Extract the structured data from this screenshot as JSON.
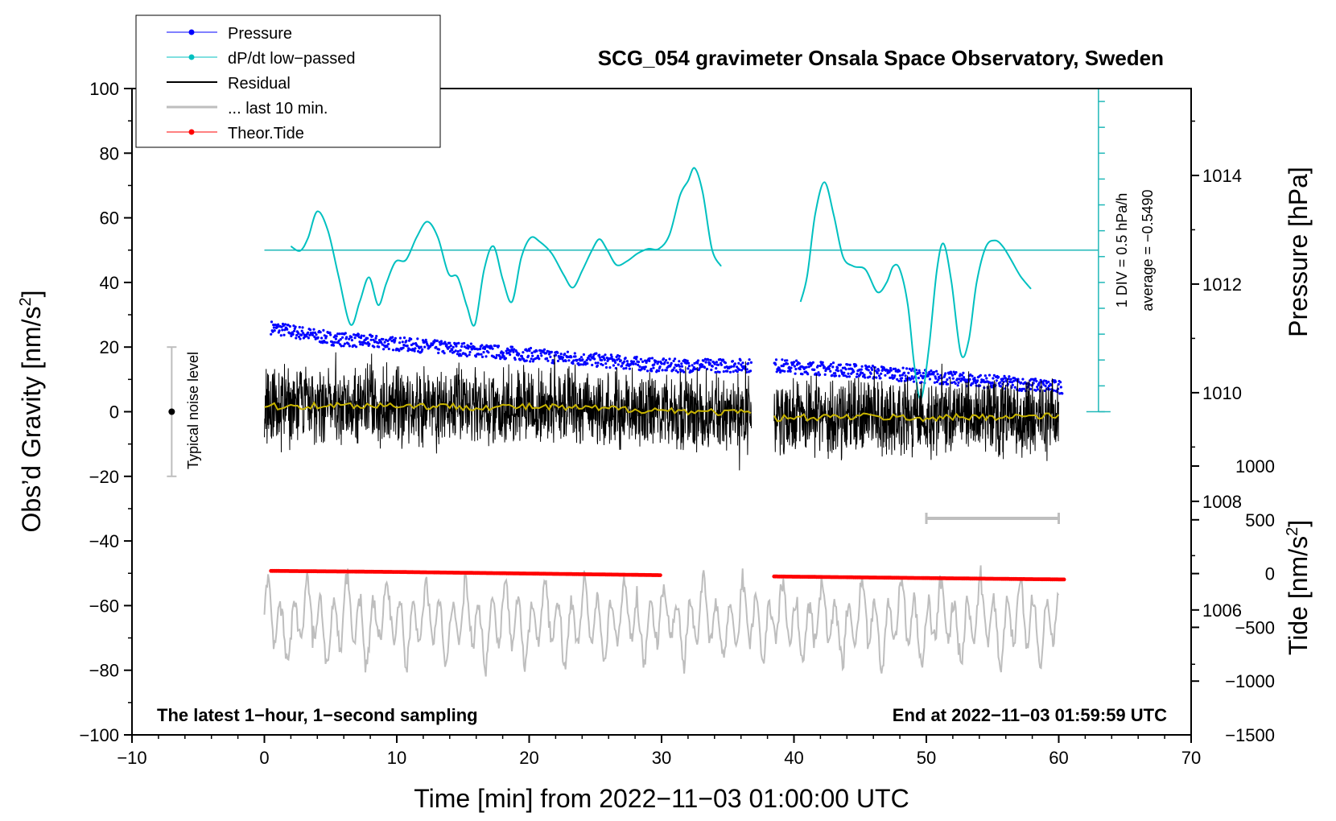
{
  "chart_data": {
    "type": "line",
    "title": "SCG_054 gravimeter Onsala Space Observatory, Sweden",
    "xlabel": "Time [min] from 2022−11−03 01:00:00 UTC",
    "ylabel_left": "Obs’d Gravity [nm/s",
    "ylabel_left_sup": "2",
    "ylabel_left_end": "]",
    "ylabel_right_pressure": "Pressure [hPa]",
    "ylabel_right_tide": "Tide [nm/s",
    "ylabel_right_tide_sup": "2",
    "ylabel_right_tide_end": "]",
    "xlim": [
      -10,
      70
    ],
    "ylim": [
      -100,
      100
    ],
    "pressure_lim": [
      1003.7,
      1015.6
    ],
    "tide_lim": [
      -1500,
      1000
    ],
    "x_ticks": [
      "−10",
      "0",
      "10",
      "20",
      "30",
      "40",
      "50",
      "60",
      "70"
    ],
    "y_ticks": [
      "−100",
      "−80",
      "−60",
      "−40",
      "−20",
      "0",
      "20",
      "40",
      "60",
      "80",
      "100"
    ],
    "pressure_ticks": [
      "1006",
      "1008",
      "1010",
      "1012",
      "1014"
    ],
    "tide_ticks": [
      "−1500",
      "−1000",
      "−500",
      "0",
      "500",
      "1000"
    ],
    "legend": [
      {
        "label": "Pressure",
        "color": "#0000ff",
        "style": "line-dot"
      },
      {
        "label": "dP/dt low−passed",
        "color": "#00c0c0",
        "style": "line-dot"
      },
      {
        "label": "Residual",
        "color": "#000000",
        "style": "line"
      },
      {
        "label": "... last 10 min.",
        "color": "#bebebe",
        "style": "line"
      },
      {
        "label": "Theor.Tide",
        "color": "#ff0000",
        "style": "line-dot"
      }
    ],
    "annotations": {
      "noise_level": "Typical noise level",
      "dpdt_div": "1 DIV = 0.5 hPa/h",
      "dpdt_avg": "average = −0.5490",
      "bottom_left": "The latest 1−hour, 1−second sampling",
      "bottom_right": "End at 2022−11−03 01:59:59 UTC"
    },
    "data_gap_min": [
      36.8,
      38.5
    ],
    "series": [
      {
        "name": "Pressure",
        "axis": "pressure",
        "color": "#0000ff",
        "x": [
          0.5,
          5,
          10,
          15,
          20,
          25,
          30,
          36.8,
          38.5,
          45,
          50,
          55,
          60.3
        ],
        "values": [
          1011.2,
          1011.0,
          1010.9,
          1010.8,
          1010.7,
          1010.6,
          1010.5,
          1010.5,
          1010.5,
          1010.4,
          1010.3,
          1010.2,
          1010.1
        ]
      },
      {
        "name": "dP/dt low−passed",
        "axis": "dpdt_div",
        "color": "#00c0c0",
        "baseline_gravity": 50,
        "x": [
          2.0,
          2.7,
          3.3,
          4.0,
          4.8,
          5.6,
          6.5,
          7.2,
          7.9,
          8.6,
          9.2,
          9.9,
          10.7,
          11.5,
          12.3,
          13.1,
          13.9,
          14.6,
          15.3,
          15.9,
          16.6,
          17.3,
          18.0,
          18.7,
          19.4,
          20.1,
          20.8,
          21.7,
          22.6,
          23.3,
          24.0,
          24.7,
          25.3,
          25.9,
          26.6,
          27.4,
          28.2,
          29.0,
          29.8,
          30.6,
          31.4,
          32.0,
          32.5,
          33.1,
          33.8,
          34.5
        ],
        "values": [
          0.6,
          -0.1,
          1.9,
          6.0,
          3.0,
          -4.0,
          -11.5,
          -8.0,
          -4.2,
          -8.5,
          -5.2,
          -1.8,
          -1.5,
          2.0,
          4.4,
          2.0,
          -3.6,
          -4.2,
          -8.7,
          -11.5,
          -3.0,
          0.6,
          -4.5,
          -8.0,
          -1.2,
          1.9,
          1.3,
          -0.5,
          -3.8,
          -5.8,
          -3.2,
          -0.2,
          1.7,
          0.0,
          -2.3,
          -1.7,
          -0.5,
          0.2,
          0.2,
          2.4,
          8.5,
          10.7,
          12.7,
          9.0,
          0.2,
          -2.5
        ]
      },
      {
        "name": "dP/dt low−passed (after gap)",
        "axis": "dpdt_div",
        "color": "#00c0c0",
        "baseline_gravity": 50,
        "x": [
          40.5,
          41.0,
          41.6,
          42.3,
          43.0,
          43.7,
          44.5,
          45.4,
          46.3,
          47.0,
          47.5,
          48.0,
          48.6,
          49.1,
          49.6,
          50.2,
          50.8,
          51.3,
          51.9,
          52.6,
          53.2,
          53.8,
          54.5,
          55.2,
          55.8,
          56.4,
          57.1,
          57.9
        ],
        "values": [
          -8.0,
          -4.0,
          5.5,
          10.5,
          5.5,
          -1.0,
          -2.5,
          -3.0,
          -6.5,
          -5.0,
          -2.5,
          -3.0,
          -8.5,
          -18.0,
          -23.0,
          -15.0,
          -3.0,
          1.0,
          -5.0,
          -16.0,
          -14.0,
          -5.0,
          0.5,
          1.5,
          0.5,
          -1.5,
          -4.0,
          -6.0
        ]
      },
      {
        "name": "Residual (1−min running mean)",
        "axis": "gravity",
        "color": "#c8b400",
        "x": [
          0,
          5,
          10,
          15,
          20,
          25,
          30,
          36.8,
          38.5,
          45,
          50,
          55,
          60
        ],
        "values": [
          1.5,
          2.0,
          2.0,
          1.5,
          1.5,
          1.0,
          0.5,
          -0.5,
          -2.0,
          -1.5,
          -2.0,
          -1.5,
          -1.5
        ]
      },
      {
        "name": "Theor.Tide",
        "axis": "tide",
        "color": "#ff0000",
        "x": [
          0.5,
          10,
          20,
          30,
          37.5,
          38.5,
          50,
          60.5
        ],
        "values": [
          25,
          15,
          0,
          -15,
          -25,
          -27,
          -42,
          -55
        ]
      }
    ],
    "residual_spread_nm_s2": [
      -20,
      20
    ],
    "last10_offset_nm_s2": -65,
    "last10_marker_min": [
      50,
      60
    ],
    "last10_marker_gravity": -33,
    "noise_bar": {
      "x": -7,
      "y": 0,
      "range": [
        -20,
        20
      ]
    }
  }
}
